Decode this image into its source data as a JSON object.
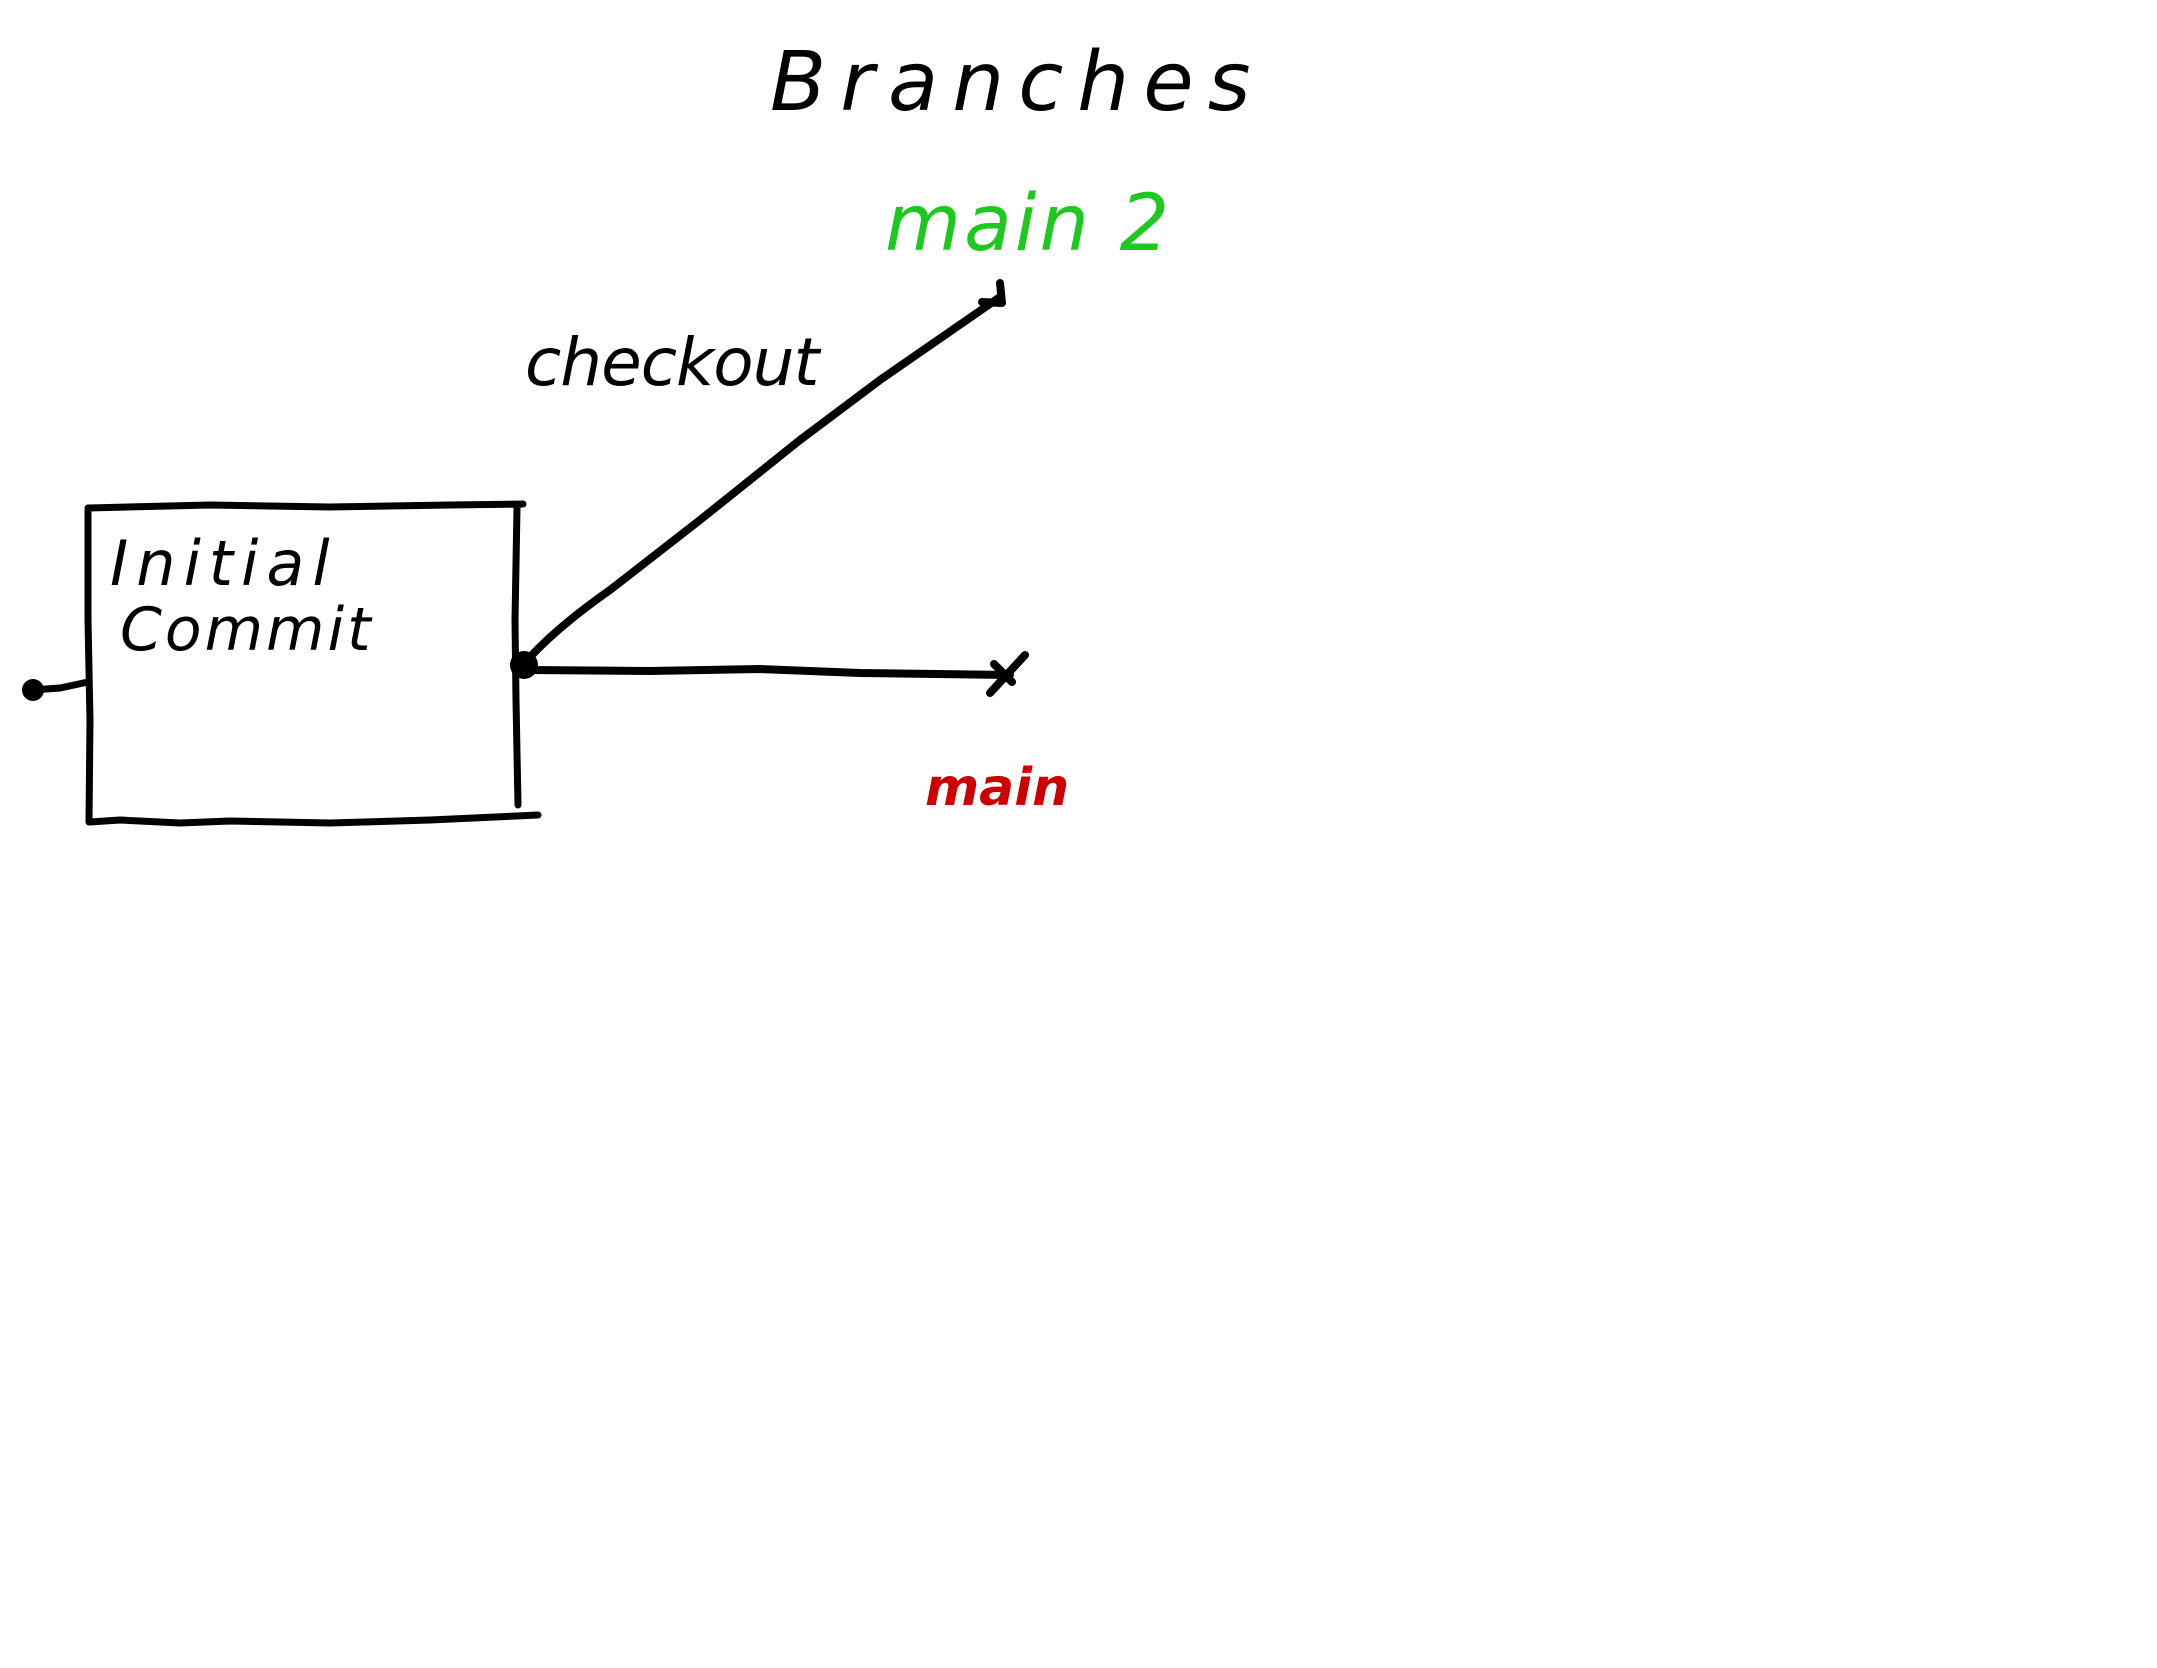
{
  "title": "Branches",
  "commit": {
    "line1": "Initial",
    "line2": "Commit"
  },
  "edge_label": "checkout",
  "branches": {
    "new_branch": "main 2",
    "original_branch": "main"
  },
  "colors": {
    "ink": "#000000",
    "new_branch": "#1fc81f",
    "original_branch": "#cc0000",
    "background": "#ffffff"
  }
}
